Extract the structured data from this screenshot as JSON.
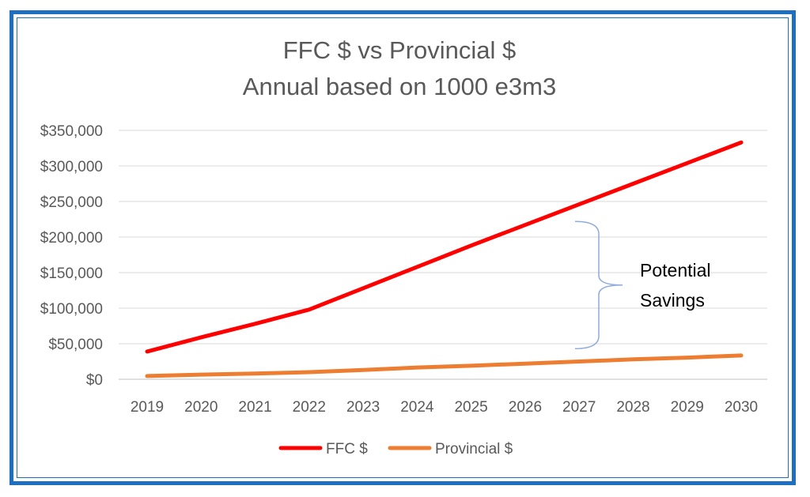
{
  "chart_data": {
    "type": "line",
    "title_lines": [
      "FFC $ vs Provincial $",
      "Annual based on 1000 e3m3"
    ],
    "xlabel": "",
    "ylabel": "",
    "x": [
      "2019",
      "2020",
      "2021",
      "2022",
      "2023",
      "2024",
      "2025",
      "2026",
      "2027",
      "2028",
      "2029",
      "2030"
    ],
    "ylim": [
      0,
      350000
    ],
    "y_ticks": [
      0,
      50000,
      100000,
      150000,
      200000,
      250000,
      300000,
      350000
    ],
    "y_tick_labels": [
      "$0",
      "$50,000",
      "$100,000",
      "$150,000",
      "$200,000",
      "$250,000",
      "$300,000",
      "$350,000"
    ],
    "grid": true,
    "legend_position": "bottom",
    "series": [
      {
        "name": "FFC $",
        "color": "#ff0000",
        "values": [
          39000,
          59000,
          78000,
          98000,
          128000,
          158000,
          188000,
          217000,
          246000,
          275000,
          304000,
          333000
        ]
      },
      {
        "name": "Provincial $",
        "color": "#ed7d31",
        "values": [
          4500,
          6500,
          8000,
          10000,
          13000,
          16500,
          19000,
          22000,
          25000,
          28000,
          30500,
          33500
        ]
      }
    ],
    "annotation": {
      "lines": [
        "Potential",
        "Savings"
      ],
      "brace_color": "#8faadc",
      "brace_range": [
        43000,
        222000
      ],
      "brace_x": "2027-2028"
    }
  }
}
